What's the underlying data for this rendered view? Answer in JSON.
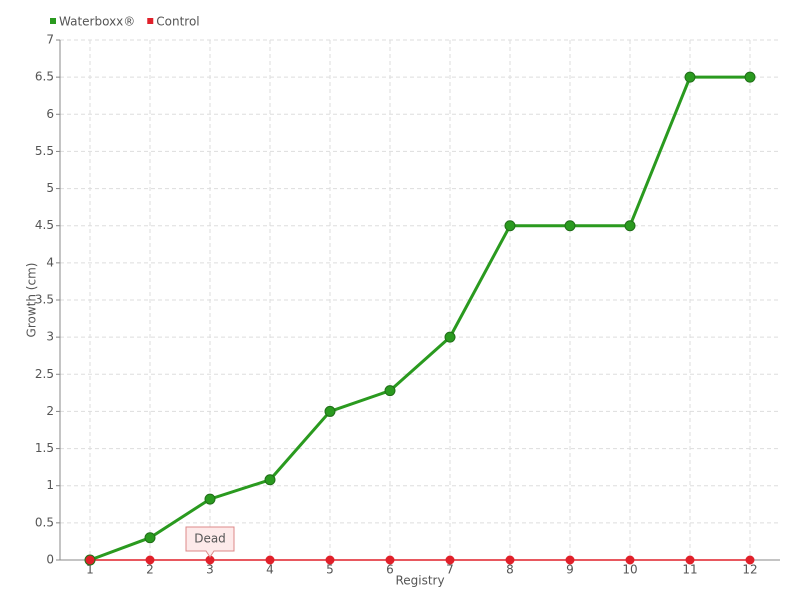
{
  "chart_data": {
    "type": "line",
    "x_label": "Registry",
    "y_label": "Growth (cm)",
    "categories": [
      "1",
      "2",
      "3",
      "4",
      "5",
      "6",
      "7",
      "8",
      "9",
      "10",
      "11",
      "12"
    ],
    "series": [
      {
        "name": "Waterboxx®",
        "color": "#2a9a1f",
        "values": [
          0,
          0.3,
          0.82,
          1.08,
          2,
          2.28,
          3,
          4.5,
          4.5,
          4.5,
          6.5,
          6.5
        ]
      },
      {
        "name": "Control",
        "color": "#e0202a",
        "values": [
          0,
          0,
          0,
          0,
          0,
          0,
          0,
          0,
          0,
          0,
          0,
          0
        ]
      }
    ],
    "annotations": [
      {
        "text": "Dead"
      }
    ],
    "ylim": [
      0,
      7
    ],
    "yticks": [
      0,
      0.5,
      1,
      1.5,
      2,
      2.5,
      3,
      3.5,
      4,
      4.5,
      5,
      5.5,
      6,
      6.5,
      7
    ],
    "grid": true,
    "legend": "top-left"
  }
}
